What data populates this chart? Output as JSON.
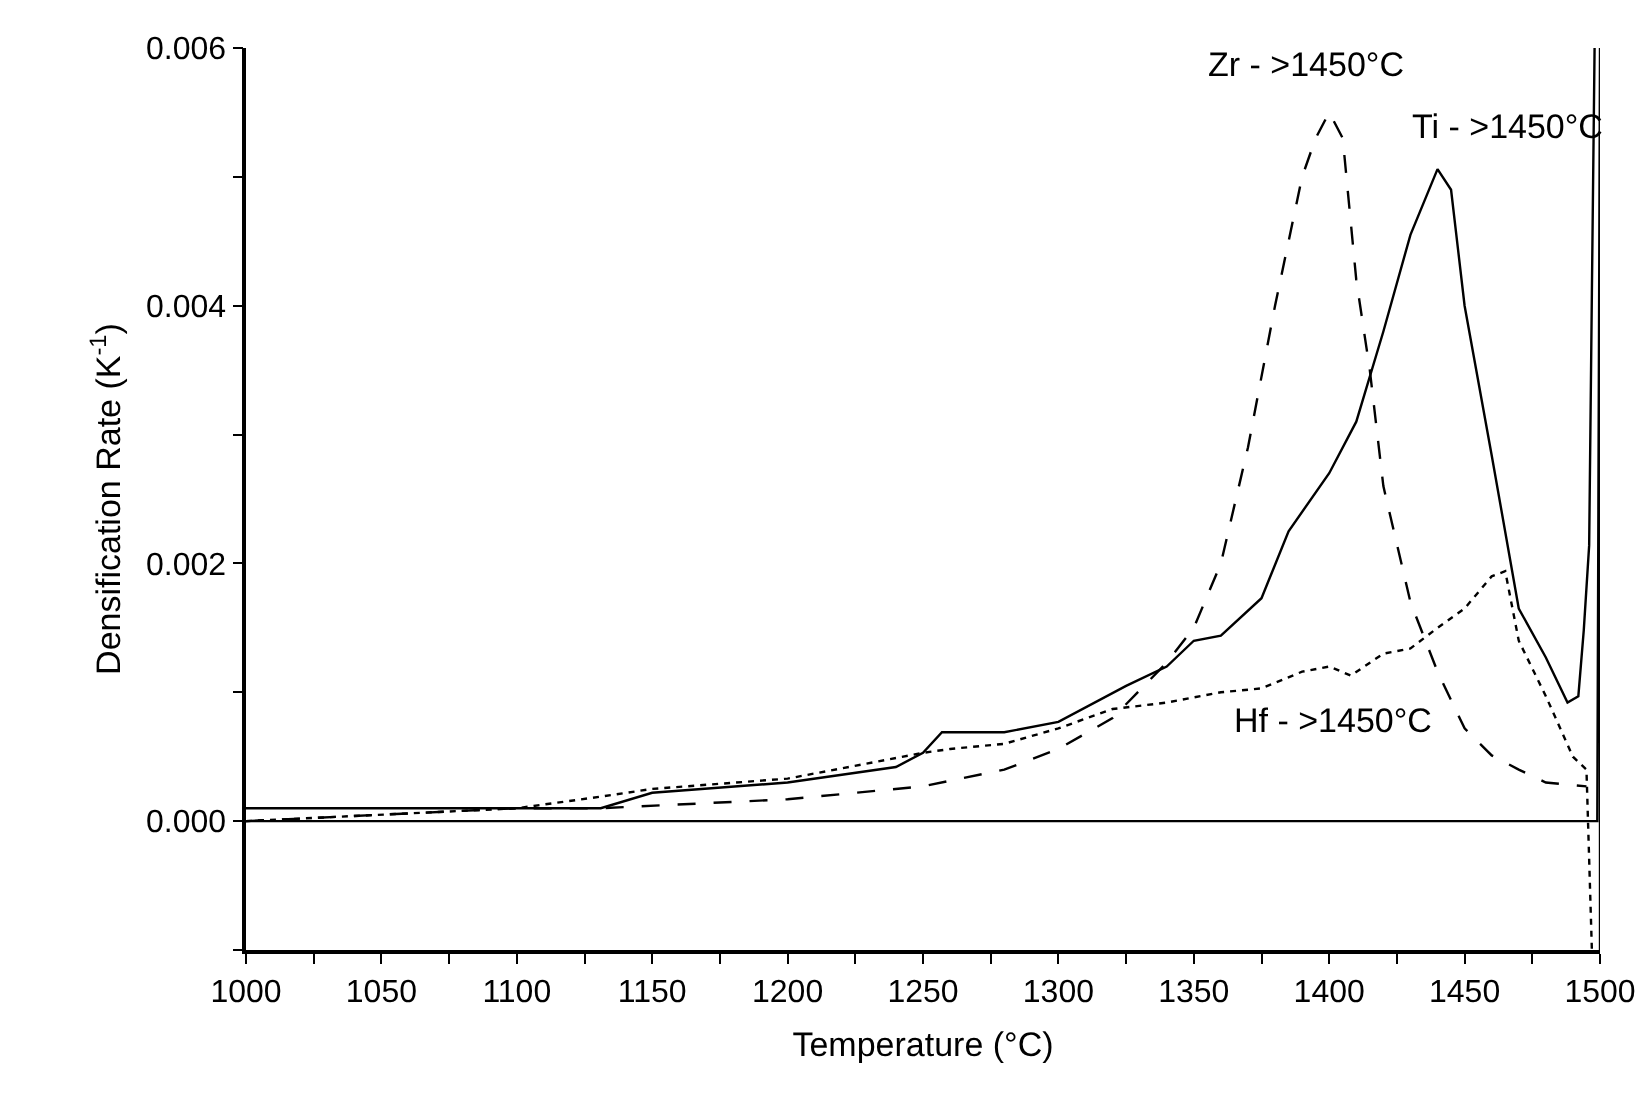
{
  "chart_data": {
    "type": "line",
    "xlabel": "Temperature (°C)",
    "ylabel": "Densification Rate (K$^{-1}$)",
    "xlim": [
      1000,
      1500
    ],
    "ylim": [
      -0.001,
      0.006
    ],
    "xticks": [
      1000,
      {
        "value": 1025,
        "label": null
      },
      1050,
      {
        "value": 1075,
        "label": null
      },
      1100,
      {
        "value": 1125,
        "label": null
      },
      1150,
      {
        "value": 1175,
        "label": null
      },
      1200,
      {
        "value": 1225,
        "label": null
      },
      1250,
      {
        "value": 1275,
        "label": null
      },
      1300,
      {
        "value": 1325,
        "label": null
      },
      1350,
      {
        "value": 1375,
        "label": null
      },
      1400,
      {
        "value": 1425,
        "label": null
      },
      1450,
      {
        "value": 1475,
        "label": null
      },
      1500
    ],
    "yticks": [
      {
        "value": -0.001,
        "label": null
      },
      {
        "value": 0,
        "label": "0.000"
      },
      {
        "value": 0.001,
        "label": null
      },
      {
        "value": 0.002,
        "label": "0.002"
      },
      {
        "value": 0.003,
        "label": null
      },
      {
        "value": 0.004,
        "label": "0.004"
      },
      {
        "value": 0.005,
        "label": null
      },
      {
        "value": 0.006,
        "label": "0.006"
      }
    ],
    "grid": false,
    "legend": false,
    "marker": "none",
    "series": [
      {
        "name": "Zr - >1450°C",
        "color": "#000000",
        "line_style": "dashed",
        "x": [
          1000,
          1100,
          1131,
          1200,
          1250,
          1280,
          1300,
          1320,
          1340,
          1350,
          1360,
          1370,
          1380,
          1390,
          1395,
          1400,
          1405,
          1410,
          1415,
          1420,
          1430,
          1440,
          1450,
          1460,
          1470,
          1480,
          1495
        ],
        "values": [
          0.0,
          0.0001,
          0.0001,
          0.00017,
          0.00027,
          0.0004,
          0.00056,
          0.0008,
          0.00123,
          0.0015,
          0.002,
          0.0029,
          0.004,
          0.005,
          0.0053,
          0.0055,
          0.0053,
          0.0042,
          0.0035,
          0.0026,
          0.0017,
          0.00116,
          0.00072,
          0.00051,
          0.0004,
          0.0003,
          0.00027
        ]
      },
      {
        "name": "Ti - >1450°C",
        "color": "#000000",
        "line_style": "solid",
        "x": [
          1000,
          1050,
          1100,
          1131,
          1150,
          1200,
          1240,
          1250,
          1257,
          1280,
          1300,
          1325,
          1340,
          1350,
          1360,
          1375,
          1385,
          1400,
          1410,
          1420,
          1430,
          1440,
          1445,
          1450,
          1460,
          1470,
          1480,
          1488,
          1492,
          1494,
          1496,
          1497,
          1498
        ],
        "values": [
          0.0001,
          0.0001,
          0.0001,
          0.0001,
          0.00022,
          0.0003,
          0.00042,
          0.00053,
          0.00069,
          0.00069,
          0.00077,
          0.00105,
          0.0012,
          0.0014,
          0.00144,
          0.00173,
          0.00225,
          0.0027,
          0.0031,
          0.0038,
          0.00455,
          0.00506,
          0.0049,
          0.004,
          0.00284,
          0.00165,
          0.00127,
          0.00092,
          0.00097,
          0.00148,
          0.00214,
          0.0041,
          0.006
        ]
      },
      {
        "name": "Hf - >1450°C",
        "color": "#000000",
        "line_style": "dotted",
        "x": [
          1000,
          1100,
          1131,
          1150,
          1200,
          1250,
          1260,
          1280,
          1300,
          1320,
          1340,
          1360,
          1375,
          1390,
          1400,
          1408,
          1420,
          1430,
          1440,
          1450,
          1460,
          1465,
          1470,
          1480,
          1490,
          1495,
          1497
        ],
        "values": [
          0.0,
          0.0001,
          0.00019,
          0.00025,
          0.00033,
          0.00053,
          0.00056,
          0.0006,
          0.00072,
          0.00087,
          0.00092,
          0.001,
          0.00103,
          0.00116,
          0.0012,
          0.00113,
          0.0013,
          0.00134,
          0.0015,
          0.00165,
          0.0019,
          0.00194,
          0.0014,
          0.00097,
          0.0005,
          0.0004,
          -0.001
        ]
      },
      {
        "color": "#000000",
        "line_style": "solid",
        "x": [
          1000,
          1496,
          1499,
          1500,
          1500
        ],
        "values": [
          0,
          0,
          0,
          0.006,
          -0.001
        ]
      }
    ]
  }
}
